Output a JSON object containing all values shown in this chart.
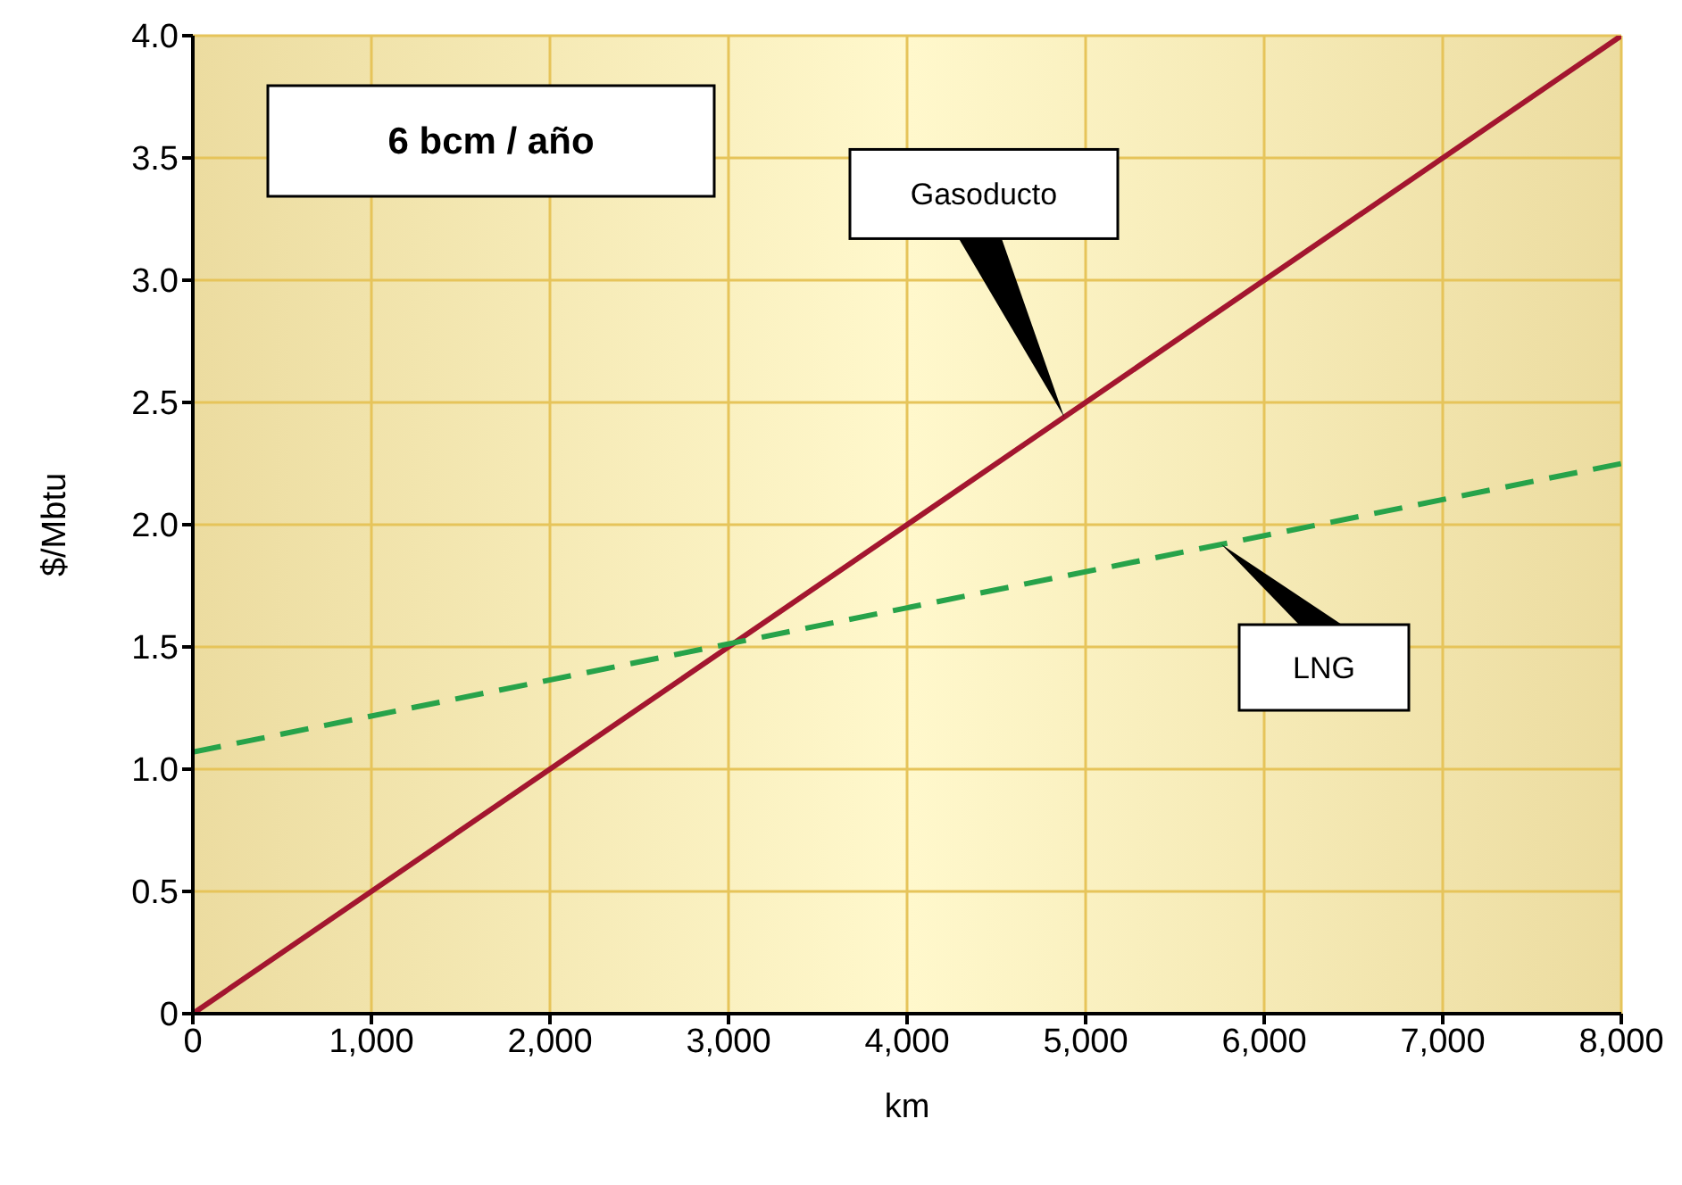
{
  "chart_data": {
    "type": "line",
    "xlabel": "km",
    "ylabel": "$/Mbtu",
    "annotations": [
      "6 bcm / año",
      "Gasoducto",
      "LNG"
    ],
    "series": [
      {
        "color": "#a3162f",
        "line_style": "solid",
        "values": [
          0,
          4.0
        ]
      },
      {
        "color": "#27a34a",
        "line_style": "dashed",
        "values": [
          1.07,
          2.25
        ]
      }
    ],
    "x": [
      0,
      8000
    ],
    "xlim": [
      0,
      8000
    ],
    "xticks": [
      0,
      {
        "value": 1000,
        "label": "1,000"
      },
      {
        "value": 2000,
        "label": "2,000"
      },
      {
        "value": 3000,
        "label": "3,000"
      },
      {
        "value": 4000,
        "label": "4,000"
      },
      {
        "value": 5000,
        "label": "5,000"
      },
      {
        "value": 6000,
        "label": "6,000"
      },
      {
        "value": 7000,
        "label": "7,000"
      },
      {
        "value": 8000,
        "label": "8,000"
      }
    ],
    "ylim": [
      0,
      4.0
    ],
    "yticks": [
      0,
      0.5,
      {
        "value": 1,
        "label": "1.0"
      },
      1.5,
      {
        "value": 2,
        "label": "2.0"
      },
      2.5,
      {
        "value": 3,
        "label": "3.0"
      },
      3.5,
      {
        "value": 4,
        "label": "4.0"
      }
    ],
    "grid": true,
    "legend": false
  }
}
